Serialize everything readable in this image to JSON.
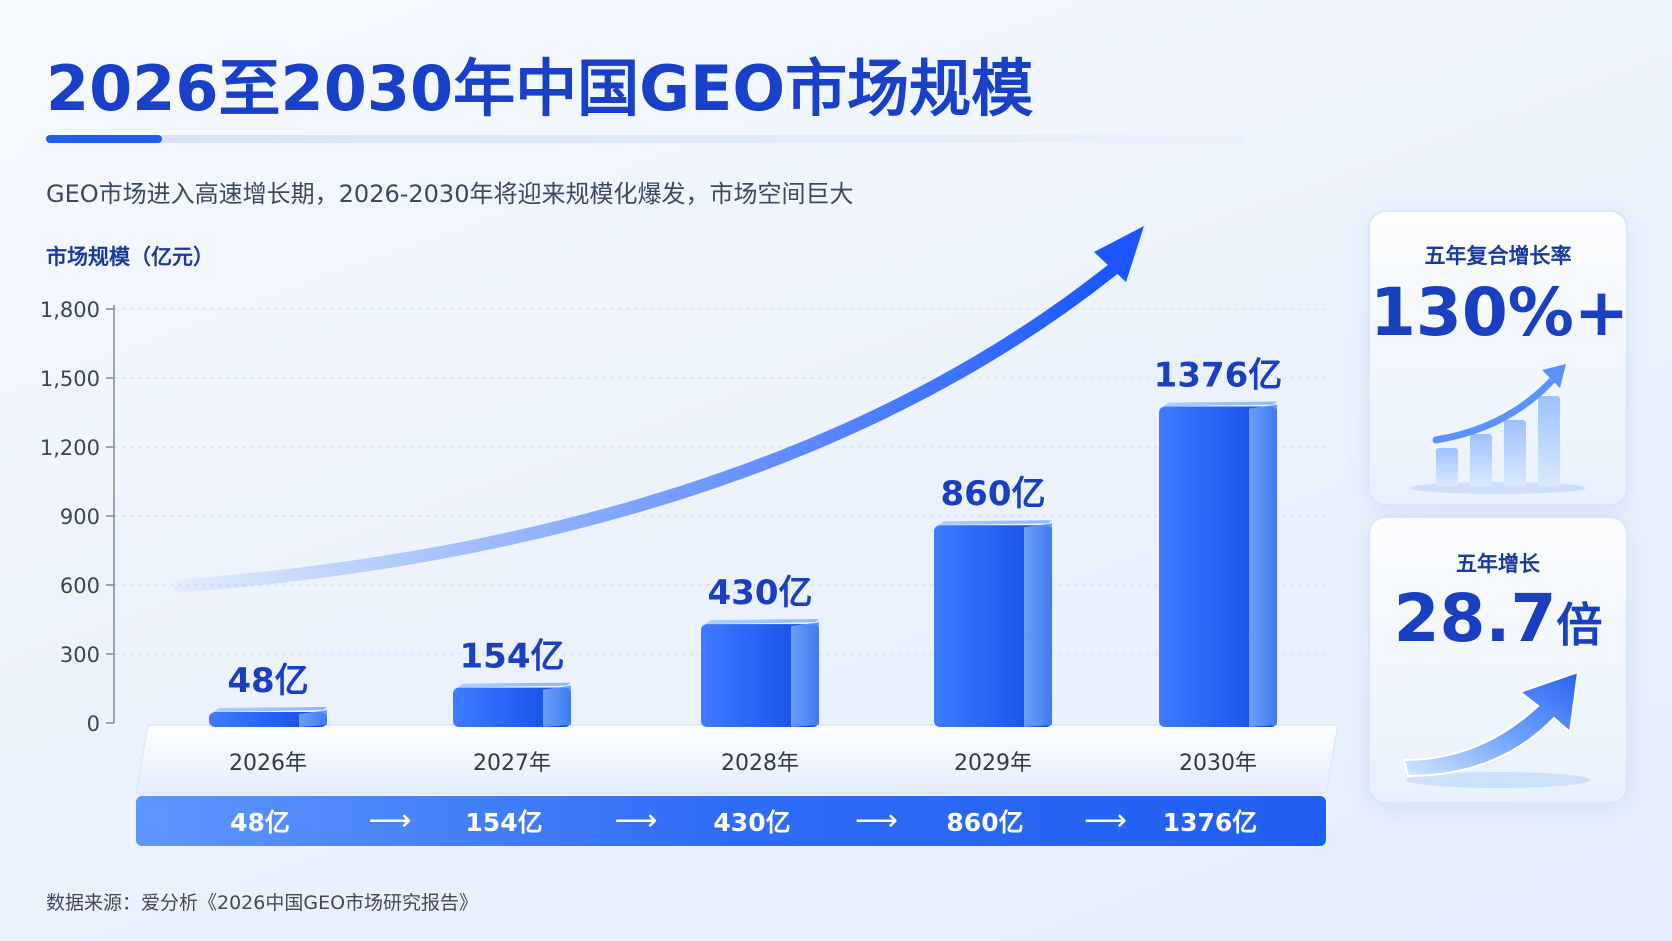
{
  "page": {
    "title": "2026至2030年中国GEO市场规模",
    "subtitle": "GEO市场进入高速增长期，2026-2030年将迎来规模化爆发，市场空间巨大",
    "source": "数据来源：爱分析《2026中国GEO市场研究报告》"
  },
  "stats": {
    "cagr_label": "五年复合增长率",
    "cagr_value": "130%+",
    "growth_label": "五年增长",
    "growth_value": "28.7",
    "growth_unit": "倍"
  },
  "timeline": {
    "values": [
      "48亿",
      "154亿",
      "430亿",
      "860亿",
      "1376亿"
    ],
    "arrow": "⟶"
  },
  "colors": {
    "primary": "#1f5ef0",
    "title": "#1840c8",
    "bar_light": "#6aa3ff",
    "bar_dark": "#1a4fe6"
  },
  "chart_data": {
    "type": "bar",
    "ylabel": "市场规模（亿元）",
    "categories": [
      "2026年",
      "2027年",
      "2028年",
      "2029年",
      "2030年"
    ],
    "values": [
      48,
      154,
      430,
      860,
      1376
    ],
    "value_labels": [
      "48亿",
      "154亿",
      "430亿",
      "860亿",
      "1376亿"
    ],
    "yticks": [
      0,
      300,
      600,
      900,
      1200,
      1500,
      1800
    ],
    "ytick_labels": [
      "0",
      "300",
      "600",
      "900",
      "1,200",
      "1,500",
      "1,800"
    ],
    "ylim": [
      0,
      1800
    ],
    "grid": true,
    "trend_arrow": true
  }
}
